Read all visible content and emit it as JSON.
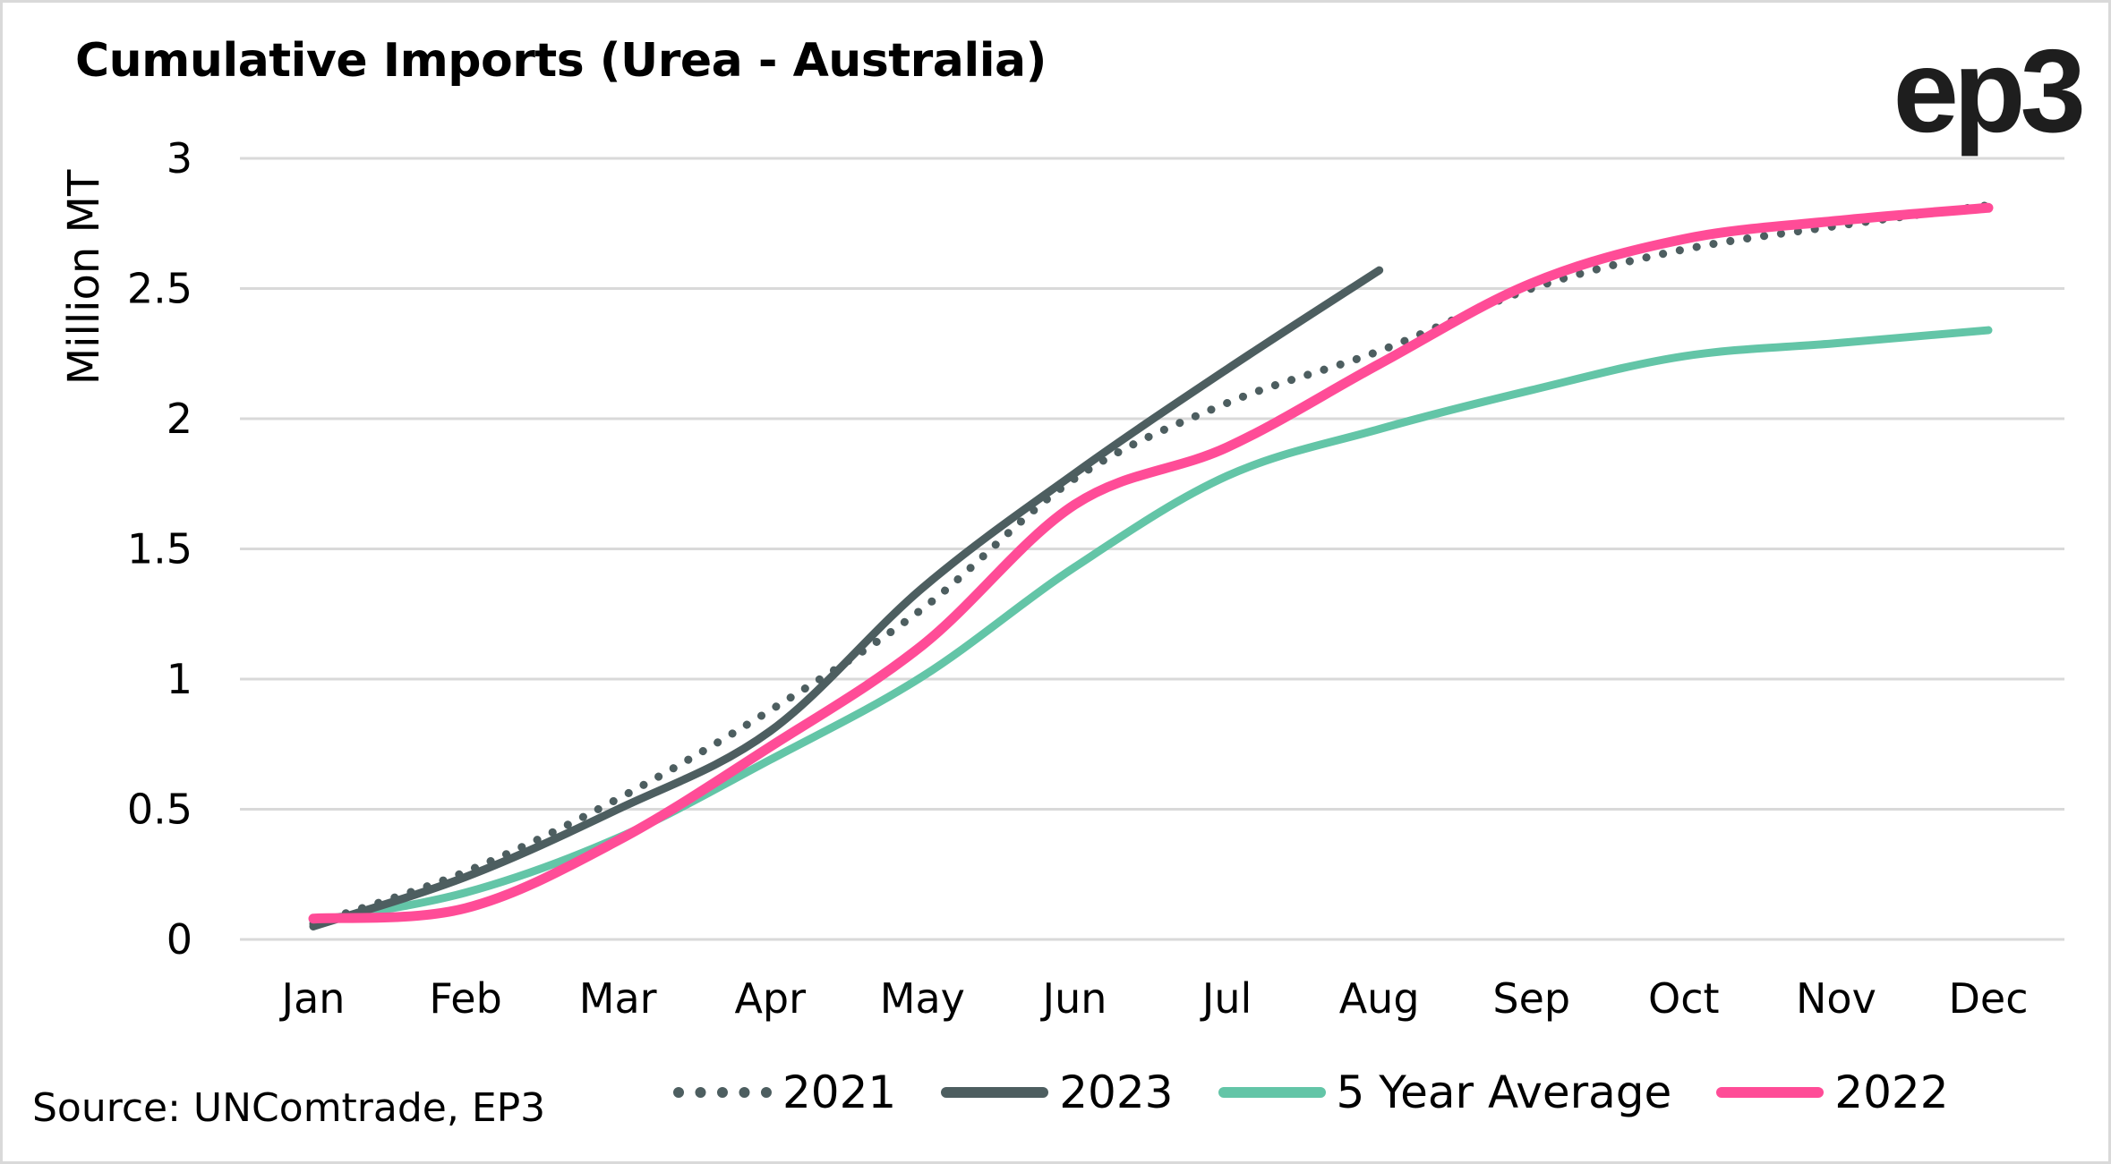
{
  "title": "Cumulative Imports (Urea - Australia)",
  "logo": "ep3",
  "source": "Source: UNComtrade, EP3",
  "colors": {
    "2021": "#4d5e60",
    "2023": "#4d5e60",
    "5yr": "#63c5a7",
    "2022": "#ff4c97",
    "grid": "#d9d9d9"
  },
  "chart_data": {
    "type": "line",
    "title": "Cumulative Imports (Urea - Australia)",
    "xlabel": "",
    "ylabel": "Million MT",
    "categories": [
      "Jan",
      "Feb",
      "Mar",
      "Apr",
      "May",
      "Jun",
      "Jul",
      "Aug",
      "Sep",
      "Oct",
      "Nov",
      "Dec"
    ],
    "ylim": [
      0,
      3
    ],
    "yticks": [
      0,
      0.5,
      1,
      1.5,
      2,
      2.5,
      3
    ],
    "ytick_labels": [
      "0",
      "0.5",
      "1",
      "1.5",
      "2",
      "2.5",
      "3"
    ],
    "grid": true,
    "legend_position": "bottom",
    "series": [
      {
        "name": "2021",
        "style": "dotted",
        "color": "#4d5e60",
        "values": [
          0.06,
          0.26,
          0.54,
          0.88,
          1.27,
          1.77,
          2.06,
          2.26,
          2.5,
          2.65,
          2.74,
          2.82
        ]
      },
      {
        "name": "2023",
        "style": "solid",
        "color": "#4d5e60",
        "values": [
          0.05,
          0.24,
          0.5,
          0.8,
          1.35,
          1.79,
          2.19,
          2.57,
          null,
          null,
          null,
          null
        ]
      },
      {
        "name": "5 Year Average",
        "style": "solid",
        "color": "#63c5a7",
        "values": [
          0.07,
          0.18,
          0.39,
          0.69,
          1.01,
          1.43,
          1.78,
          1.96,
          2.11,
          2.24,
          2.29,
          2.34
        ]
      },
      {
        "name": "2022",
        "style": "solid",
        "color": "#ff4c97",
        "values": [
          0.08,
          0.12,
          0.38,
          0.74,
          1.13,
          1.67,
          1.89,
          2.21,
          2.52,
          2.69,
          2.76,
          2.81
        ]
      }
    ]
  }
}
